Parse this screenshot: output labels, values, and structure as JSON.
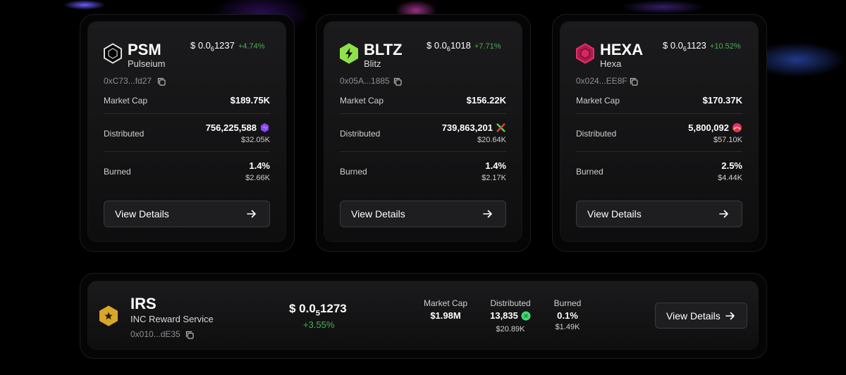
{
  "cards": [
    {
      "symbol": "PSM",
      "name": "Pulseium",
      "price": {
        "prefix": "$ 0.0",
        "zeros": "6",
        "digits": "1237"
      },
      "change": "+4.74%",
      "address": "0xC73...fd27",
      "rows": [
        {
          "label": "Market Cap",
          "value": "$189.75K"
        },
        {
          "label": "Distributed",
          "value": "756,225,588",
          "sub": "$32.05K"
        },
        {
          "label": "Burned",
          "value": "1.4%",
          "sub": "$2.66K"
        }
      ],
      "button": "View Details"
    },
    {
      "symbol": "BLTZ",
      "name": "Blitz",
      "price": {
        "prefix": "$ 0.0",
        "zeros": "6",
        "digits": "1018"
      },
      "change": "+7.71%",
      "address": "0x05A...1885",
      "rows": [
        {
          "label": "Market Cap",
          "value": "$156.22K"
        },
        {
          "label": "Distributed",
          "value": "739,863,201",
          "sub": "$20.64K"
        },
        {
          "label": "Burned",
          "value": "1.4%",
          "sub": "$2.17K"
        }
      ],
      "button": "View Details"
    },
    {
      "symbol": "HEXA",
      "name": "Hexa",
      "price": {
        "prefix": "$ 0.0",
        "zeros": "6",
        "digits": "1123"
      },
      "change": "+10.52%",
      "address": "0x024...EE8F",
      "rows": [
        {
          "label": "Market Cap",
          "value": "$170.37K"
        },
        {
          "label": "Distributed",
          "value": "5,800,092",
          "sub": "$57.10K"
        },
        {
          "label": "Burned",
          "value": "2.5%",
          "sub": "$4.44K"
        }
      ],
      "button": "View Details"
    }
  ],
  "featured": {
    "symbol": "IRS",
    "name": "INC Reward Service",
    "address": "0x010...dE35",
    "price": {
      "prefix": "$ 0.0",
      "zeros": "5",
      "digits": "1273"
    },
    "change": "+3.55%",
    "stats": [
      {
        "label": "Market Cap",
        "value": "$1.98M"
      },
      {
        "label": "Distributed",
        "value": "13,835",
        "sub": "$20.89K"
      },
      {
        "label": "Burned",
        "value": "0.1%",
        "sub": "$1.49K"
      }
    ],
    "button": "View Details"
  }
}
